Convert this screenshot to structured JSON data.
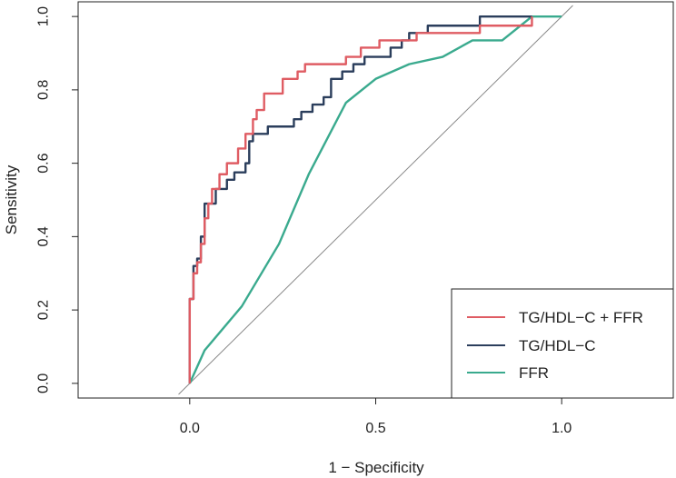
{
  "chart_data": {
    "type": "line",
    "title": "",
    "xlabel": "1 − Specificity",
    "ylabel": "Sensitivity",
    "xlim": [
      -0.3,
      1.3
    ],
    "ylim": [
      -0.04,
      1.04
    ],
    "xticks": [
      {
        "value": 0.0,
        "label": "0.0"
      },
      {
        "value": 0.5,
        "label": "0.5"
      },
      {
        "value": 1.0,
        "label": "1.0"
      }
    ],
    "yticks": [
      {
        "value": 0.0,
        "label": "0.0"
      },
      {
        "value": 0.2,
        "label": "0.2"
      },
      {
        "value": 0.4,
        "label": "0.4"
      },
      {
        "value": 0.6,
        "label": "0.6"
      },
      {
        "value": 0.8,
        "label": "0.8"
      },
      {
        "value": 1.0,
        "label": "1.0"
      }
    ],
    "legend_position": "bottom-right",
    "reference_line": {
      "name": "chance",
      "color": "#888888",
      "points": [
        [
          -0.03,
          -0.03
        ],
        [
          1.03,
          1.03
        ]
      ]
    },
    "series": [
      {
        "name": "TG/HDL−C + FFR",
        "color": "#DF5C63",
        "points": [
          [
            0,
            0
          ],
          [
            0,
            0.23
          ],
          [
            0.01,
            0.23
          ],
          [
            0.01,
            0.3
          ],
          [
            0.02,
            0.3
          ],
          [
            0.02,
            0.33
          ],
          [
            0.03,
            0.33
          ],
          [
            0.03,
            0.38
          ],
          [
            0.04,
            0.38
          ],
          [
            0.04,
            0.45
          ],
          [
            0.05,
            0.45
          ],
          [
            0.05,
            0.49
          ],
          [
            0.06,
            0.49
          ],
          [
            0.06,
            0.53
          ],
          [
            0.08,
            0.53
          ],
          [
            0.08,
            0.57
          ],
          [
            0.1,
            0.57
          ],
          [
            0.1,
            0.6
          ],
          [
            0.13,
            0.6
          ],
          [
            0.13,
            0.64
          ],
          [
            0.15,
            0.64
          ],
          [
            0.15,
            0.68
          ],
          [
            0.17,
            0.68
          ],
          [
            0.17,
            0.72
          ],
          [
            0.18,
            0.72
          ],
          [
            0.18,
            0.745
          ],
          [
            0.2,
            0.745
          ],
          [
            0.2,
            0.79
          ],
          [
            0.25,
            0.79
          ],
          [
            0.25,
            0.83
          ],
          [
            0.29,
            0.83
          ],
          [
            0.29,
            0.85
          ],
          [
            0.31,
            0.85
          ],
          [
            0.31,
            0.87
          ],
          [
            0.42,
            0.87
          ],
          [
            0.42,
            0.89
          ],
          [
            0.46,
            0.89
          ],
          [
            0.46,
            0.915
          ],
          [
            0.51,
            0.915
          ],
          [
            0.51,
            0.935
          ],
          [
            0.61,
            0.935
          ],
          [
            0.61,
            0.955
          ],
          [
            0.78,
            0.955
          ],
          [
            0.78,
            0.975
          ],
          [
            0.92,
            0.975
          ],
          [
            0.92,
            1.0
          ]
        ]
      },
      {
        "name": "TG/HDL−C",
        "color": "#2B3E5C",
        "points": [
          [
            0,
            0
          ],
          [
            0,
            0.23
          ],
          [
            0.01,
            0.23
          ],
          [
            0.01,
            0.32
          ],
          [
            0.02,
            0.32
          ],
          [
            0.02,
            0.34
          ],
          [
            0.03,
            0.34
          ],
          [
            0.03,
            0.4
          ],
          [
            0.04,
            0.4
          ],
          [
            0.04,
            0.49
          ],
          [
            0.07,
            0.49
          ],
          [
            0.07,
            0.53
          ],
          [
            0.1,
            0.53
          ],
          [
            0.1,
            0.555
          ],
          [
            0.12,
            0.555
          ],
          [
            0.12,
            0.575
          ],
          [
            0.15,
            0.575
          ],
          [
            0.15,
            0.6
          ],
          [
            0.16,
            0.6
          ],
          [
            0.16,
            0.66
          ],
          [
            0.17,
            0.66
          ],
          [
            0.17,
            0.68
          ],
          [
            0.21,
            0.68
          ],
          [
            0.21,
            0.7
          ],
          [
            0.28,
            0.7
          ],
          [
            0.28,
            0.72
          ],
          [
            0.3,
            0.72
          ],
          [
            0.3,
            0.74
          ],
          [
            0.33,
            0.74
          ],
          [
            0.33,
            0.76
          ],
          [
            0.36,
            0.76
          ],
          [
            0.36,
            0.78
          ],
          [
            0.38,
            0.78
          ],
          [
            0.38,
            0.83
          ],
          [
            0.41,
            0.83
          ],
          [
            0.41,
            0.85
          ],
          [
            0.44,
            0.85
          ],
          [
            0.44,
            0.87
          ],
          [
            0.47,
            0.87
          ],
          [
            0.47,
            0.89
          ],
          [
            0.54,
            0.89
          ],
          [
            0.54,
            0.915
          ],
          [
            0.57,
            0.915
          ],
          [
            0.57,
            0.935
          ],
          [
            0.59,
            0.935
          ],
          [
            0.59,
            0.955
          ],
          [
            0.64,
            0.955
          ],
          [
            0.64,
            0.975
          ],
          [
            0.78,
            0.975
          ],
          [
            0.78,
            1.0
          ],
          [
            0.92,
            1.0
          ]
        ]
      },
      {
        "name": "FFR",
        "color": "#3AAA8E",
        "points": [
          [
            0,
            0
          ],
          [
            0.04,
            0.09
          ],
          [
            0.14,
            0.21
          ],
          [
            0.24,
            0.38
          ],
          [
            0.32,
            0.57
          ],
          [
            0.42,
            0.765
          ],
          [
            0.5,
            0.83
          ],
          [
            0.59,
            0.87
          ],
          [
            0.68,
            0.89
          ],
          [
            0.76,
            0.935
          ],
          [
            0.84,
            0.935
          ],
          [
            0.92,
            1.0
          ],
          [
            1.0,
            1.0
          ]
        ]
      }
    ]
  }
}
